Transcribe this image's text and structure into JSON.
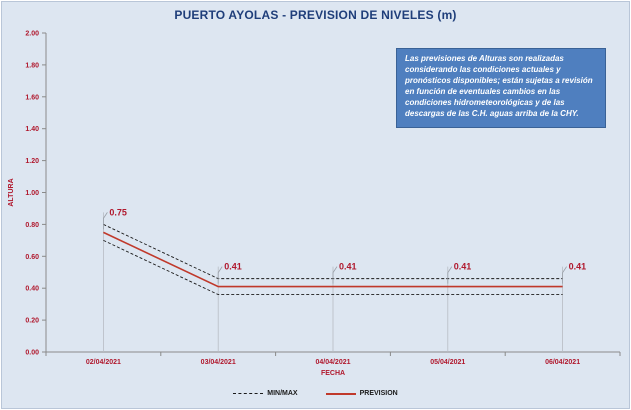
{
  "chart_data": {
    "type": "line",
    "title": "PUERTO AYOLAS - PREVISION DE NIVELES (m)",
    "xlabel": "FECHA",
    "ylabel": "ALTURA",
    "categories": [
      "02/04/2021",
      "03/04/2021",
      "04/04/2021",
      "05/04/2021",
      "06/04/2021"
    ],
    "ylim": [
      0,
      2
    ],
    "yticks": [
      "0.00",
      "0.20",
      "0.40",
      "0.60",
      "0.80",
      "1.00",
      "1.20",
      "1.40",
      "1.60",
      "1.80",
      "2.00"
    ],
    "grid": false,
    "legend_position": "bottom",
    "series": [
      {
        "name": "PREVISION",
        "values": [
          0.75,
          0.41,
          0.41,
          0.41,
          0.41
        ],
        "color": "#c0392b",
        "style": "solid"
      },
      {
        "name": "MIN/MAX",
        "role": "max",
        "values": [
          0.8,
          0.46,
          0.46,
          0.46,
          0.46
        ],
        "color": "#1a1a1a",
        "style": "dashed"
      },
      {
        "name": "MIN/MAX",
        "role": "min",
        "values": [
          0.7,
          0.36,
          0.36,
          0.36,
          0.36
        ],
        "color": "#1a1a1a",
        "style": "dashed"
      }
    ],
    "data_labels": [
      "0.75",
      "0.41",
      "0.41",
      "0.41",
      "0.41"
    ],
    "annotation": "Las previsiones de Alturas son realizadas considerando las condiciones actuales y pronósticos disponibles; están sujetas a revisión en función de eventuales cambios en las condiciones hidrometeorológicas y de las descargas de las C.H. aguas arriba de la CHY.",
    "legend": [
      {
        "label": "MIN/MAX",
        "style": "dashed",
        "color": "#1a1a1a"
      },
      {
        "label": "PREVISION",
        "style": "solid",
        "color": "#c0392b"
      }
    ]
  }
}
